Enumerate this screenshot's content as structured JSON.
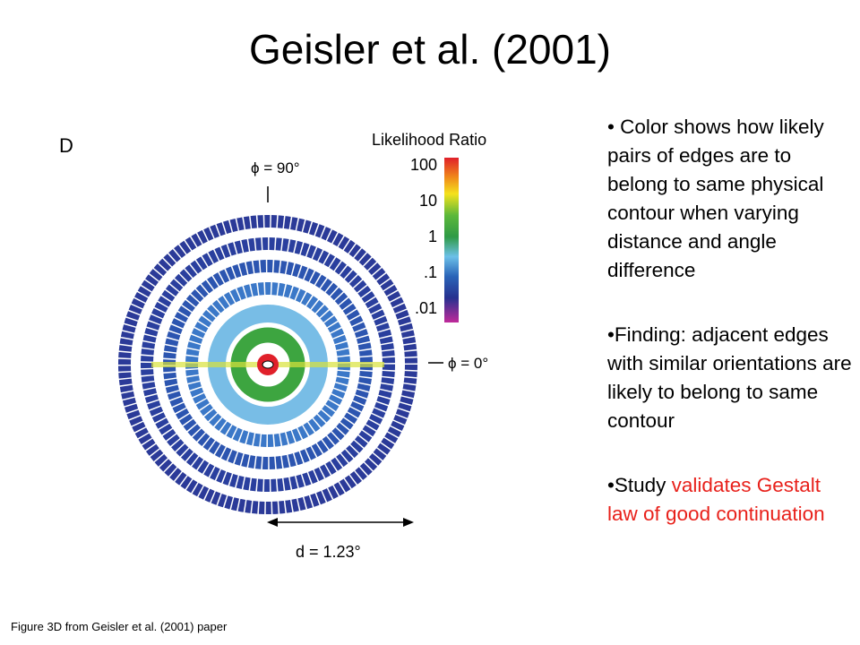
{
  "title": "Geisler et al. (2001)",
  "figure": {
    "panel": "D",
    "colorbar_title": "Likelihood Ratio",
    "colorbar_labels": [
      "100",
      "10",
      "1",
      ".1",
      ".01"
    ],
    "phi_90": "ϕ = 90°",
    "phi_0": "ϕ = 0°",
    "distance": "d = 1.23°"
  },
  "bullets": [
    {
      "segments": [
        {
          "text": "• Color shows how likely pairs of edges are to belong to same physical contour when varying distance and angle difference",
          "color": "#000000"
        }
      ]
    },
    {
      "segments": [
        {
          "text": "•Finding: adjacent edges with similar orientations are likely to belong to same contour",
          "color": "#000000"
        }
      ]
    },
    {
      "segments": [
        {
          "text": "•Study ",
          "color": "#000000"
        },
        {
          "text": "validates Gestalt law of good continuation",
          "color": "#e8211b"
        }
      ]
    }
  ],
  "caption": "Figure 3D from Geisler et al. (2001) paper"
}
